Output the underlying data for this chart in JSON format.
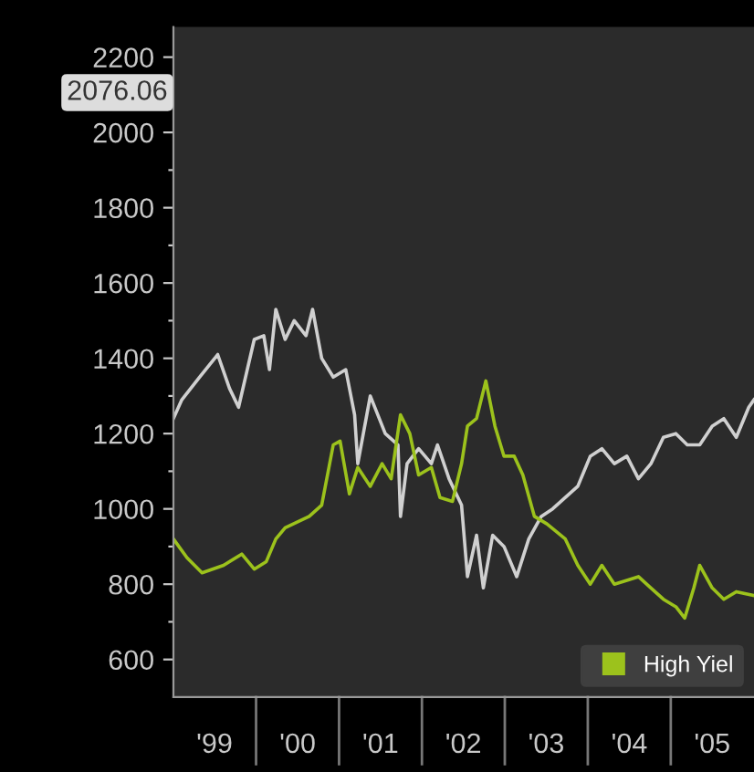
{
  "chart_data": {
    "type": "line",
    "xlim": [
      "1999-01-01",
      "2006-01-01"
    ],
    "ylim": [
      500,
      2280
    ],
    "xticks": [
      {
        "value": "1999-07-01",
        "label": "'99"
      },
      {
        "value": "2000-07-01",
        "label": "'00"
      },
      {
        "value": "2001-07-01",
        "label": "'01"
      },
      {
        "value": "2002-07-01",
        "label": "'02"
      },
      {
        "value": "2003-07-01",
        "label": "'03"
      },
      {
        "value": "2004-07-01",
        "label": "'04"
      },
      {
        "value": "2005-07-01",
        "label": "'05"
      }
    ],
    "yticks": [
      600,
      800,
      1000,
      1200,
      1400,
      1600,
      1800,
      2000,
      2200,
      {
        "value": 700,
        "label": null
      },
      {
        "value": 900,
        "label": null
      },
      {
        "value": 1100,
        "label": null
      },
      {
        "value": 1300,
        "label": null
      },
      {
        "value": 1500,
        "label": null
      },
      {
        "value": 1700,
        "label": null
      },
      {
        "value": 1900,
        "label": null
      },
      {
        "value": 2100,
        "label": null
      }
    ],
    "grid": false,
    "legend": "bottom right",
    "line_style": "solid",
    "marker": "none",
    "annotations": [
      "2076.06"
    ],
    "series": [
      {
        "color": "#d0d0d0",
        "x": [
          "1999-01-01",
          "1999-02-07",
          "1999-04-26",
          "1999-07-15",
          "1999-09-05",
          "1999-10-15",
          "1999-12-23",
          "2000-02-03",
          "2000-02-28",
          "2000-03-27",
          "2000-05-07",
          "2000-06-16",
          "2000-08-07",
          "2000-09-05",
          "2000-10-15",
          "2000-12-05",
          "2001-01-29",
          "2001-03-09",
          "2001-03-23",
          "2001-05-17",
          "2001-07-22",
          "2001-09-16",
          "2001-09-27",
          "2001-10-26",
          "2001-12-16",
          "2002-02-10",
          "2002-03-09",
          "2002-04-29",
          "2002-06-23",
          "2002-07-19",
          "2002-08-28",
          "2002-09-27",
          "2002-11-07",
          "2002-12-27",
          "2003-02-21",
          "2003-04-15",
          "2003-06-09",
          "2003-07-29",
          "2003-11-17",
          "2004-01-11",
          "2004-03-02",
          "2004-04-26",
          "2004-06-20",
          "2004-08-10",
          "2004-10-04",
          "2004-11-28",
          "2005-01-22",
          "2005-03-13",
          "2005-05-07",
          "2005-07-01",
          "2005-08-21",
          "2005-10-15",
          "2005-12-09",
          "2006-01-01"
        ],
        "values": [
          1240,
          1290,
          1350,
          1410,
          1320,
          1270,
          1450,
          1460,
          1370,
          1530,
          1450,
          1500,
          1460,
          1530,
          1400,
          1350,
          1370,
          1250,
          1120,
          1300,
          1200,
          1170,
          980,
          1120,
          1160,
          1120,
          1170,
          1080,
          1010,
          820,
          930,
          790,
          930,
          900,
          820,
          920,
          980,
          1000,
          1060,
          1140,
          1160,
          1120,
          1140,
          1080,
          1120,
          1190,
          1200,
          1170,
          1170,
          1220,
          1240,
          1190,
          1270,
          1290
        ]
      },
      {
        "name": "High Yiel",
        "color": "#9cc21c",
        "x": [
          "1999-01-01",
          "1999-03-02",
          "1999-05-07",
          "1999-08-10",
          "1999-10-29",
          "1999-12-23",
          "2000-02-14",
          "2000-03-27",
          "2000-05-07",
          "2000-08-21",
          "2000-10-15",
          "2000-12-05",
          "2001-01-04",
          "2001-02-14",
          "2001-03-23",
          "2001-05-17",
          "2001-07-08",
          "2001-08-17",
          "2001-09-27",
          "2001-11-07",
          "2001-12-16",
          "2002-02-10",
          "2002-03-20",
          "2002-05-14",
          "2002-06-23",
          "2002-07-19",
          "2002-08-28",
          "2002-10-08",
          "2002-11-17",
          "2002-12-27",
          "2003-02-10",
          "2003-03-20",
          "2003-05-10",
          "2003-07-04",
          "2003-09-23",
          "2003-11-17",
          "2004-01-11",
          "2004-03-02",
          "2004-04-26",
          "2004-06-20",
          "2004-08-10",
          "2004-10-04",
          "2004-11-28",
          "2005-01-22",
          "2005-03-02",
          "2005-04-11",
          "2005-05-07",
          "2005-07-01",
          "2005-08-21",
          "2005-10-15",
          "2006-01-01"
        ],
        "values": [
          920,
          870,
          830,
          850,
          880,
          840,
          860,
          920,
          950,
          980,
          1010,
          1170,
          1180,
          1040,
          1110,
          1060,
          1120,
          1080,
          1250,
          1200,
          1090,
          1110,
          1030,
          1020,
          1120,
          1220,
          1240,
          1340,
          1220,
          1140,
          1140,
          1090,
          980,
          960,
          920,
          850,
          800,
          850,
          800,
          810,
          820,
          790,
          760,
          740,
          710,
          790,
          850,
          790,
          760,
          780,
          770
        ]
      }
    ]
  }
}
